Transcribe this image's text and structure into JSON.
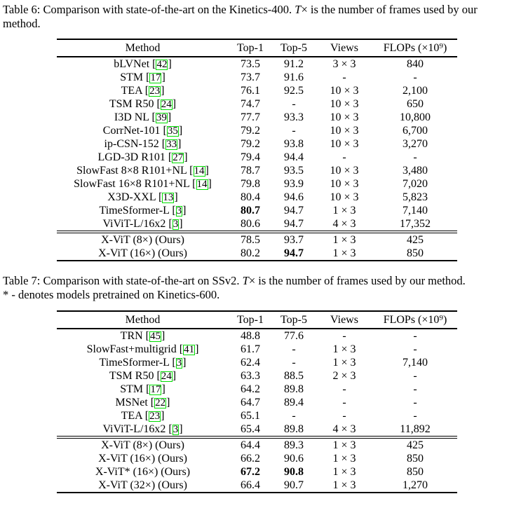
{
  "colors": {
    "citation_box": "#00dd00",
    "text": "#000000",
    "background": "#ffffff"
  },
  "table6": {
    "caption": {
      "pre": "Table 6: Comparison with state-of-the-art on the Kinetics-400. ",
      "math": "T",
      "post": "× is the number of frames used by our method."
    },
    "headers": [
      "Method",
      "Top-1",
      "Top-5",
      "Views",
      "FLOPs (×10⁹)"
    ],
    "main_rows": [
      {
        "method": "bLVNet",
        "cite": "42",
        "top1": "73.5",
        "top5": "91.2",
        "views": "3 × 3",
        "flops": "840"
      },
      {
        "method": "STM",
        "cite": "17",
        "top1": "73.7",
        "top5": "91.6",
        "views": "-",
        "flops": "-"
      },
      {
        "method": "TEA",
        "cite": "23",
        "top1": "76.1",
        "top5": "92.5",
        "views": "10 × 3",
        "flops": "2,100"
      },
      {
        "method": "TSM R50",
        "cite": "24",
        "top1": "74.7",
        "top5": "-",
        "views": "10 × 3",
        "flops": "650"
      },
      {
        "method": "I3D NL",
        "cite": "39",
        "top1": "77.7",
        "top5": "93.3",
        "views": "10 × 3",
        "flops": "10,800"
      },
      {
        "method": "CorrNet-101",
        "cite": "35",
        "top1": "79.2",
        "top5": "-",
        "views": "10 × 3",
        "flops": "6,700"
      },
      {
        "method": "ip-CSN-152",
        "cite": "33",
        "top1": "79.2",
        "top5": "93.8",
        "views": "10 × 3",
        "flops": "3,270"
      },
      {
        "method": "LGD-3D R101",
        "cite": "27",
        "top1": "79.4",
        "top5": "94.4",
        "views": "-",
        "flops": "-"
      },
      {
        "method": "SlowFast 8×8 R101+NL",
        "cite": "14",
        "top1": "78.7",
        "top5": "93.5",
        "views": "10 × 3",
        "flops": "3,480"
      },
      {
        "method": "SlowFast 16×8 R101+NL",
        "cite": "14",
        "top1": "79.8",
        "top5": "93.9",
        "views": "10 × 3",
        "flops": "7,020"
      },
      {
        "method": "X3D-XXL",
        "cite": "13",
        "top1": "80.4",
        "top5": "94.6",
        "views": "10 × 3",
        "flops": "5,823"
      },
      {
        "method": "TimeSformer-L",
        "cite": "3",
        "top1": "80.7",
        "bold_top1": true,
        "top5": "94.7",
        "views": "1 × 3",
        "flops": "7,140"
      },
      {
        "method": "ViViT-L/16x2",
        "cite": "3",
        "top1": "80.6",
        "top5": "94.7",
        "views": "4 × 3",
        "flops": "17,352"
      }
    ],
    "ours_rows": [
      {
        "method": "X-ViT (8×) (Ours)",
        "top1": "78.5",
        "top5": "93.7",
        "views": "1 × 3",
        "flops": "425"
      },
      {
        "method": "X-ViT (16×) (Ours)",
        "top1": "80.2",
        "top5": "94.7",
        "bold_top5": true,
        "views": "1 × 3",
        "flops": "850"
      }
    ]
  },
  "table7": {
    "caption": {
      "pre": "Table 7: Comparison with state-of-the-art on SSv2. ",
      "math": "T",
      "post": "× is the number of frames used by our method.",
      "line2": "* - denotes models pretrained on Kinetics-600."
    },
    "headers": [
      "Method",
      "Top-1",
      "Top-5",
      "Views",
      "FLOPs (×10⁹)"
    ],
    "main_rows": [
      {
        "method": "TRN",
        "cite": "45",
        "top1": "48.8",
        "top5": "77.6",
        "views": "-",
        "flops": "-"
      },
      {
        "method": "SlowFast+multigrid",
        "cite": "41",
        "top1": "61.7",
        "top5": "-",
        "views": "1 × 3",
        "flops": "-"
      },
      {
        "method": "TimeSformer-L",
        "cite": "3",
        "top1": "62.4",
        "top5": "-",
        "views": "1 × 3",
        "flops": "7,140"
      },
      {
        "method": "TSM R50",
        "cite": "24",
        "top1": "63.3",
        "top5": "88.5",
        "views": "2 × 3",
        "flops": "-"
      },
      {
        "method": "STM",
        "cite": "17",
        "top1": "64.2",
        "top5": "89.8",
        "views": "-",
        "flops": "-"
      },
      {
        "method": "MSNet",
        "cite": "22",
        "top1": "64.7",
        "top5": "89.4",
        "views": "-",
        "flops": "-"
      },
      {
        "method": "TEA",
        "cite": "23",
        "top1": "65.1",
        "top5": "-",
        "views": "-",
        "flops": "-"
      },
      {
        "method": "ViViT-L/16x2",
        "cite": "3",
        "top1": "65.4",
        "top5": "89.8",
        "views": "4 × 3",
        "flops": "11,892"
      }
    ],
    "ours_rows": [
      {
        "method": "X-ViT (8×) (Ours)",
        "top1": "64.4",
        "top5": "89.3",
        "views": "1 × 3",
        "flops": "425"
      },
      {
        "method": "X-ViT (16×) (Ours)",
        "top1": "66.2",
        "top5": "90.6",
        "views": "1 × 3",
        "flops": "850"
      },
      {
        "method": "X-ViT* (16×) (Ours)",
        "top1": "67.2",
        "bold_top1": true,
        "top5": "90.8",
        "bold_top5": true,
        "views": "1 × 3",
        "flops": "850"
      },
      {
        "method": "X-ViT (32×) (Ours)",
        "top1": "66.4",
        "top5": "90.7",
        "views": "1 × 3",
        "flops": "1,270"
      }
    ]
  }
}
